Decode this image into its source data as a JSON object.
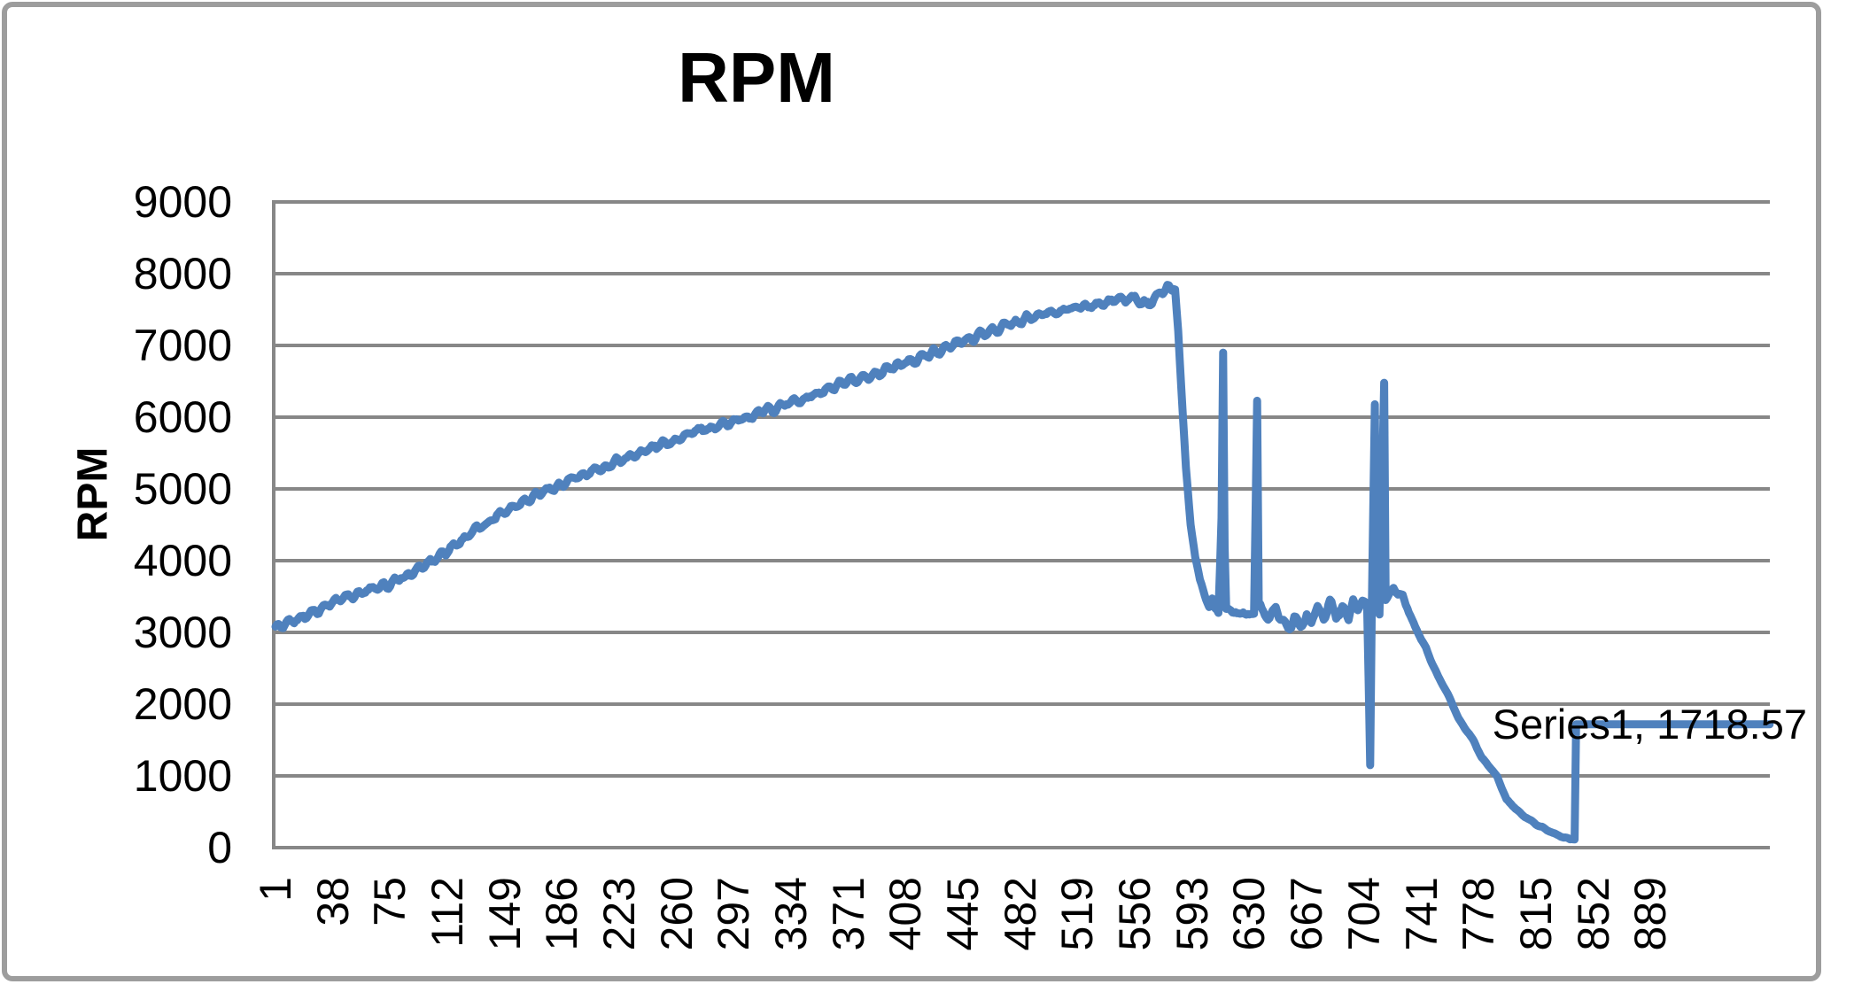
{
  "chart_data": {
    "type": "line",
    "title": "RPM",
    "y_axis_title": "RPM",
    "xlabel": "",
    "ylabel": "RPM",
    "legend": "none",
    "grid": true,
    "ylim": [
      0,
      9000
    ],
    "ytick_interval": 1000,
    "yticks": [
      0,
      1000,
      2000,
      3000,
      4000,
      5000,
      6000,
      7000,
      8000,
      9000
    ],
    "xticks": [
      1,
      38,
      75,
      112,
      149,
      186,
      223,
      260,
      297,
      334,
      371,
      408,
      445,
      482,
      519,
      556,
      593,
      630,
      667,
      704,
      741,
      778,
      815,
      852,
      889
    ],
    "x_count": 966,
    "data_label": "Series1, 1718.57",
    "series": [
      {
        "name": "Series1",
        "last_value": 1718.57,
        "anchors": [
          [
            1,
            3080
          ],
          [
            6,
            3060
          ],
          [
            12,
            3160
          ],
          [
            20,
            3230
          ],
          [
            30,
            3340
          ],
          [
            38,
            3430
          ],
          [
            48,
            3510
          ],
          [
            60,
            3580
          ],
          [
            68,
            3620
          ],
          [
            75,
            3670
          ],
          [
            85,
            3770
          ],
          [
            95,
            3900
          ],
          [
            102,
            4000
          ],
          [
            112,
            4150
          ],
          [
            120,
            4270
          ],
          [
            130,
            4420
          ],
          [
            138,
            4530
          ],
          [
            145,
            4650
          ],
          [
            152,
            4730
          ],
          [
            160,
            4820
          ],
          [
            170,
            4930
          ],
          [
            178,
            5000
          ],
          [
            186,
            5060
          ],
          [
            195,
            5150
          ],
          [
            205,
            5230
          ],
          [
            214,
            5310
          ],
          [
            223,
            5400
          ],
          [
            232,
            5470
          ],
          [
            242,
            5550
          ],
          [
            251,
            5630
          ],
          [
            260,
            5700
          ],
          [
            270,
            5780
          ],
          [
            280,
            5830
          ],
          [
            288,
            5890
          ],
          [
            297,
            5940
          ],
          [
            306,
            6010
          ],
          [
            315,
            6070
          ],
          [
            324,
            6130
          ],
          [
            334,
            6200
          ],
          [
            343,
            6270
          ],
          [
            352,
            6340
          ],
          [
            362,
            6410
          ],
          [
            371,
            6480
          ],
          [
            380,
            6550
          ],
          [
            390,
            6620
          ],
          [
            399,
            6690
          ],
          [
            408,
            6760
          ],
          [
            417,
            6830
          ],
          [
            427,
            6900
          ],
          [
            436,
            6980
          ],
          [
            445,
            7060
          ],
          [
            454,
            7130
          ],
          [
            463,
            7200
          ],
          [
            472,
            7270
          ],
          [
            482,
            7340
          ],
          [
            491,
            7400
          ],
          [
            500,
            7450
          ],
          [
            510,
            7500
          ],
          [
            519,
            7530
          ],
          [
            530,
            7560
          ],
          [
            538,
            7590
          ],
          [
            544,
            7650
          ],
          [
            550,
            7630
          ],
          [
            556,
            7660
          ],
          [
            561,
            7570
          ],
          [
            566,
            7620
          ],
          [
            572,
            7720
          ],
          [
            578,
            7805
          ],
          [
            582,
            7780
          ],
          [
            584,
            7200
          ],
          [
            586,
            6400
          ],
          [
            589,
            5300
          ],
          [
            592,
            4500
          ],
          [
            595,
            4050
          ],
          [
            598,
            3750
          ],
          [
            601,
            3520
          ],
          [
            604,
            3380
          ],
          [
            606,
            3450
          ],
          [
            608,
            3300
          ],
          [
            610,
            3280
          ],
          [
            612,
            4600
          ],
          [
            613,
            6900
          ],
          [
            614,
            4200
          ],
          [
            615,
            3300
          ],
          [
            618,
            3350
          ],
          [
            622,
            3240
          ],
          [
            626,
            3300
          ],
          [
            630,
            3230
          ],
          [
            633,
            3280
          ],
          [
            635,
            6230
          ],
          [
            636,
            3400
          ],
          [
            639,
            3300
          ],
          [
            643,
            3180
          ],
          [
            647,
            3340
          ],
          [
            651,
            3150
          ],
          [
            655,
            3090
          ],
          [
            659,
            3200
          ],
          [
            663,
            3080
          ],
          [
            667,
            3260
          ],
          [
            670,
            3120
          ],
          [
            674,
            3360
          ],
          [
            678,
            3200
          ],
          [
            682,
            3430
          ],
          [
            686,
            3240
          ],
          [
            690,
            3330
          ],
          [
            694,
            3210
          ],
          [
            697,
            3440
          ],
          [
            700,
            3320
          ],
          [
            703,
            3430
          ],
          [
            706,
            3380
          ],
          [
            708,
            1150
          ],
          [
            709,
            3300
          ],
          [
            711,
            6180
          ],
          [
            712,
            3400
          ],
          [
            714,
            3250
          ],
          [
            717,
            6480
          ],
          [
            718,
            3450
          ],
          [
            721,
            3550
          ],
          [
            723,
            3620
          ],
          [
            726,
            3520
          ],
          [
            729,
            3500
          ],
          [
            733,
            3280
          ],
          [
            737,
            3080
          ],
          [
            740,
            2950
          ],
          [
            744,
            2780
          ],
          [
            748,
            2560
          ],
          [
            752,
            2380
          ],
          [
            756,
            2230
          ],
          [
            760,
            2050
          ],
          [
            765,
            1800
          ],
          [
            770,
            1640
          ],
          [
            775,
            1480
          ],
          [
            780,
            1250
          ],
          [
            785,
            1130
          ],
          [
            790,
            990
          ],
          [
            796,
            670
          ],
          [
            802,
            540
          ],
          [
            808,
            430
          ],
          [
            815,
            330
          ],
          [
            822,
            250
          ],
          [
            828,
            185
          ],
          [
            833,
            140
          ],
          [
            838,
            118
          ],
          [
            840,
            113
          ],
          [
            841,
            1718.57
          ],
          [
            966,
            1718.57
          ]
        ],
        "noise_regions": [
          {
            "from": 2,
            "to": 580,
            "amp": 85
          },
          {
            "from": 598,
            "to": 611,
            "amp": 60
          },
          {
            "from": 615,
            "to": 634,
            "amp": 60
          },
          {
            "from": 637,
            "to": 707,
            "amp": 105
          },
          {
            "from": 719,
            "to": 731,
            "amp": 45
          },
          {
            "from": 733,
            "to": 837,
            "amp": 15
          }
        ]
      }
    ],
    "colors": {
      "line": "#4F81BD",
      "gridline": "#878787",
      "axis": "#878787",
      "border": "#9D9D9D",
      "text": "#000000",
      "background": "#FFFFFF"
    }
  }
}
